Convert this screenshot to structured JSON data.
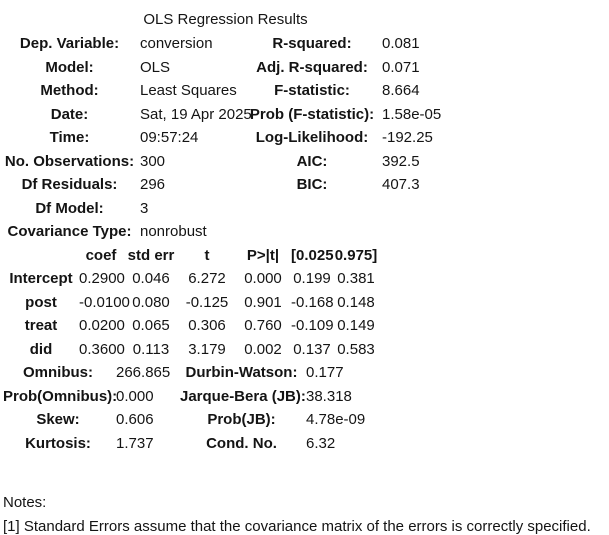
{
  "title": "OLS Regression Results",
  "summary": {
    "rows": [
      {
        "l1": "Dep. Variable:",
        "v1": "conversion",
        "l2": "R-squared:",
        "v2": "0.081"
      },
      {
        "l1": "Model:",
        "v1": "OLS",
        "l2": "Adj. R-squared:",
        "v2": "0.071"
      },
      {
        "l1": "Method:",
        "v1": "Least Squares",
        "l2": "F-statistic:",
        "v2": "8.664"
      },
      {
        "l1": "Date:",
        "v1": "Sat, 19 Apr 2025",
        "l2": "Prob (F-statistic):",
        "v2": "1.58e-05"
      },
      {
        "l1": "Time:",
        "v1": "09:57:24",
        "l2": "Log-Likelihood:",
        "v2": "-192.25"
      },
      {
        "l1": "No. Observations:",
        "v1": "300",
        "l2": "AIC:",
        "v2": "392.5"
      },
      {
        "l1": "Df Residuals:",
        "v1": "296",
        "l2": "BIC:",
        "v2": "407.3"
      },
      {
        "l1": "Df Model:",
        "v1": "3",
        "l2": "",
        "v2": ""
      },
      {
        "l1": "Covariance Type:",
        "v1": "nonrobust",
        "l2": "",
        "v2": ""
      }
    ]
  },
  "coefficients": {
    "headers": {
      "name": "",
      "coef": "coef",
      "std_err": "std err",
      "t": "t",
      "p": "P>|t|",
      "ci_low": "[0.025",
      "ci_high": "0.975]"
    },
    "rows": [
      {
        "name": "Intercept",
        "coef": "0.2900",
        "std_err": "0.046",
        "t": "6.272",
        "p": "0.000",
        "ci_low": "0.199",
        "ci_high": "0.381"
      },
      {
        "name": "post",
        "coef": "-0.0100",
        "std_err": "0.080",
        "t": "-0.125",
        "p": "0.901",
        "ci_low": "-0.168",
        "ci_high": "0.148"
      },
      {
        "name": "treat",
        "coef": "0.0200",
        "std_err": "0.065",
        "t": "0.306",
        "p": "0.760",
        "ci_low": "-0.109",
        "ci_high": "0.149"
      },
      {
        "name": "did",
        "coef": "0.3600",
        "std_err": "0.113",
        "t": "3.179",
        "p": "0.002",
        "ci_low": "0.137",
        "ci_high": "0.583"
      }
    ]
  },
  "diagnostics": {
    "rows": [
      {
        "l1": "Omnibus:",
        "v1": "266.865",
        "l2": "Durbin-Watson:",
        "v2": "0.177"
      },
      {
        "l1": "Prob(Omnibus):",
        "v1": "0.000",
        "l2": "Jarque-Bera (JB):",
        "v2": "38.318"
      },
      {
        "l1": "Skew:",
        "v1": "0.606",
        "l2": "Prob(JB):",
        "v2": "4.78e-09"
      },
      {
        "l1": "Kurtosis:",
        "v1": "1.737",
        "l2": "Cond. No.",
        "v2": "6.32"
      }
    ]
  },
  "notes": {
    "heading": "Notes:",
    "note1": "[1] Standard Errors assume that the covariance matrix of the errors is correctly specified."
  }
}
